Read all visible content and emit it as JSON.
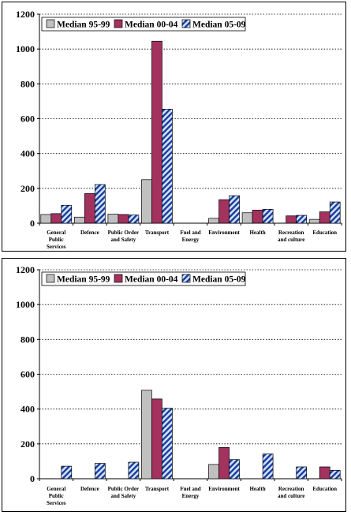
{
  "chart_data": [
    {
      "type": "bar",
      "categories": [
        [
          "General",
          "Public",
          "Services"
        ],
        [
          "Defence"
        ],
        [
          "Public Order",
          "and Safety"
        ],
        [
          "Transport"
        ],
        [
          "Fuel and",
          "Energy"
        ],
        [
          "Environment"
        ],
        [
          "Health"
        ],
        [
          "Recreation",
          "and culture"
        ],
        [
          "Education"
        ]
      ],
      "series": [
        {
          "name": "Median 95-99",
          "values": [
            50,
            35,
            52,
            250,
            0,
            28,
            60,
            0,
            22
          ]
        },
        {
          "name": "Median 00-04",
          "values": [
            55,
            170,
            50,
            1045,
            0,
            135,
            75,
            42,
            65
          ]
        },
        {
          "name": "Median 05-09",
          "values": [
            103,
            222,
            47,
            655,
            0,
            158,
            80,
            45,
            122
          ]
        }
      ],
      "ylim": [
        0,
        1200
      ],
      "yticks": [
        "0",
        "200",
        "400",
        "600",
        "800",
        "1000",
        "1200"
      ],
      "grid": true,
      "legend_position": "top-left"
    },
    {
      "type": "bar",
      "categories": [
        [
          "General",
          "Public",
          "Services"
        ],
        [
          "Defence"
        ],
        [
          "Public Order",
          "and Safety"
        ],
        [
          "Transport"
        ],
        [
          "Fuel and",
          "Energy"
        ],
        [
          "Environment"
        ],
        [
          "Health"
        ],
        [
          "Recreation",
          "and culture"
        ],
        [
          "Education"
        ]
      ],
      "series": [
        {
          "name": "Median 95-99",
          "values": [
            0,
            0,
            0,
            508,
            0,
            82,
            0,
            0,
            0
          ]
        },
        {
          "name": "Median 00-04",
          "values": [
            0,
            0,
            0,
            458,
            0,
            180,
            0,
            0,
            68
          ]
        },
        {
          "name": "Median 05-09",
          "values": [
            72,
            88,
            95,
            405,
            0,
            110,
            142,
            68,
            48
          ]
        }
      ],
      "ylim": [
        0,
        1200
      ],
      "yticks": [
        "0",
        "200",
        "400",
        "600",
        "800",
        "1000",
        "1200"
      ],
      "grid": true,
      "legend_position": "top-left"
    }
  ],
  "colors": {
    "series_1": "#c0c0c0",
    "series_2": "#a3325e",
    "series_3_stripe": "#1a3a99",
    "series_3_bg": "#cfe3ff",
    "grid": "#000000"
  }
}
